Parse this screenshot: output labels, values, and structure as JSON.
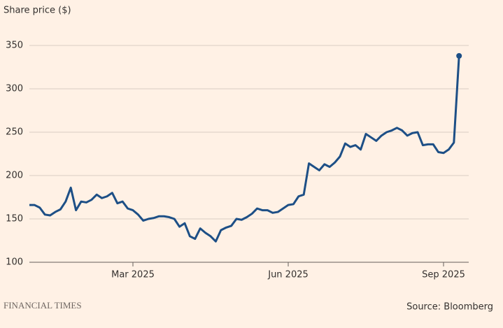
{
  "chart_data": {
    "type": "line",
    "title": "Share price ($)",
    "source": "Source: Bloomberg",
    "brand": "FINANCIAL TIMES",
    "categories": [
      null,
      null,
      null,
      null,
      null,
      null,
      null,
      null,
      null,
      null,
      null,
      null,
      null,
      null,
      null,
      null,
      null,
      null,
      null,
      null,
      "Mar 2025",
      null,
      null,
      null,
      null,
      null,
      null,
      null,
      null,
      null,
      null,
      null,
      null,
      null,
      null,
      null,
      null,
      null,
      null,
      null,
      null,
      null,
      null,
      null,
      null,
      null,
      null,
      null,
      null,
      null,
      "Jun 2025",
      null,
      null,
      null,
      null,
      null,
      null,
      null,
      null,
      null,
      null,
      null,
      null,
      null,
      null,
      null,
      null,
      null,
      null,
      null,
      null,
      null,
      null,
      null,
      null,
      null,
      null,
      null,
      null,
      null,
      "Sep 2025",
      null,
      null,
      null
    ],
    "series": [
      {
        "color": "#1d4f86",
        "values": [
          166,
          166,
          163,
          155,
          154,
          158,
          161,
          170,
          186,
          160,
          170,
          169,
          172,
          178,
          174,
          176,
          180,
          168,
          170,
          162,
          160,
          155,
          148,
          150,
          151,
          153,
          153,
          152,
          150,
          141,
          145,
          130,
          127,
          139,
          134,
          130,
          124,
          137,
          140,
          142,
          150,
          149,
          152,
          156,
          162,
          160,
          160,
          157,
          158,
          162,
          166,
          167,
          176,
          178,
          214,
          210,
          206,
          213,
          210,
          215,
          222,
          237,
          233,
          235,
          230,
          248,
          244,
          240,
          246,
          250,
          252,
          255,
          252,
          246,
          249,
          250,
          235,
          236,
          236,
          227,
          226,
          230,
          238,
          338
        ]
      }
    ],
    "ylim": [
      100,
      350
    ],
    "yticks": [
      100,
      150,
      200,
      250,
      300,
      350
    ],
    "grid": true,
    "end_marker": true
  }
}
